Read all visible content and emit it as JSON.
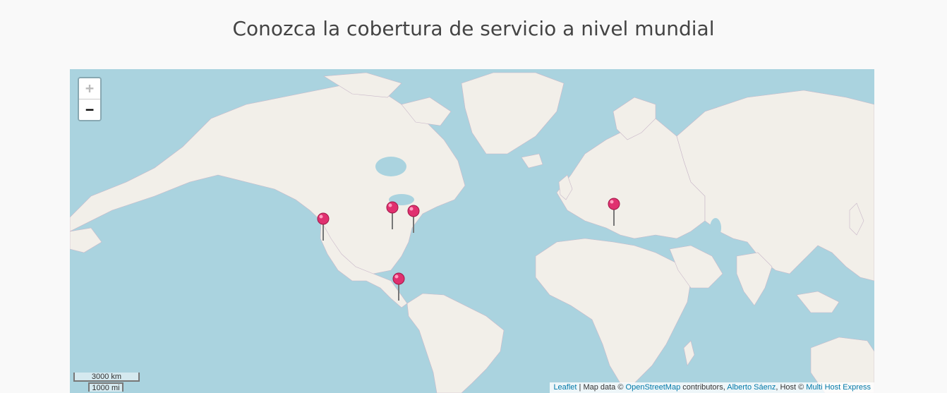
{
  "page": {
    "title": "Conozca la cobertura de servicio a nivel mundial"
  },
  "map": {
    "zoom_in_label": "+",
    "zoom_out_label": "−",
    "zoom_in_disabled": true,
    "scale_km": "3000 km",
    "scale_mi": "1000 mi",
    "attribution": {
      "leaflet": "Leaflet",
      "sep1": " | Map data © ",
      "osm": "OpenStreetMap",
      "contributors": " contributors, ",
      "author": "Alberto Sáenz",
      "host_prefix": ", Host © ",
      "host": "Multi Host Express"
    },
    "colors": {
      "water": "#aad3df",
      "land": "#f2efe9",
      "marker": "#e0306f"
    },
    "markers": [
      {
        "name": "marker-us-west",
        "icon": "map-pin-icon"
      },
      {
        "name": "marker-us-midwest",
        "icon": "map-pin-icon"
      },
      {
        "name": "marker-us-east",
        "icon": "map-pin-icon"
      },
      {
        "name": "marker-central-america",
        "icon": "map-pin-icon"
      },
      {
        "name": "marker-balkans",
        "icon": "map-pin-icon"
      }
    ]
  }
}
